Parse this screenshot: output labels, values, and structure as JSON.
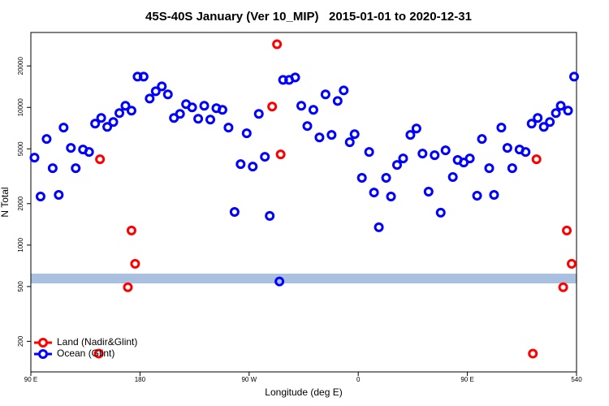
{
  "chart_data": {
    "type": "scatter",
    "title": "45S-40S January (Ver 10_MIP)   2015-01-01 to 2020-12-31",
    "x_label": "Longitude (deg E)",
    "y_label": "N Total",
    "log_y": true,
    "grid": false,
    "legend": "bottom-left",
    "xlim": [
      90,
      540
    ],
    "ylim": [
      120,
      35000
    ],
    "xticks": [
      {
        "value": 90,
        "label": "90 E"
      },
      180,
      {
        "value": 270,
        "label": "90 W"
      },
      {
        "value": 360,
        "label": "0"
      },
      {
        "value": 450,
        "label": "90 E"
      },
      540
    ],
    "yticks": [
      200,
      500,
      1000,
      2000,
      5000,
      10000,
      20000
    ],
    "series": [
      {
        "name": "Land (Nadir&Glint)",
        "color": "#ff0000",
        "x": [
          147,
          173,
          176,
          170,
          146,
          289,
          293,
          296,
          507,
          532,
          536,
          529,
          504
        ],
        "values": [
          4200,
          1276,
          732,
          494,
          163,
          10140,
          28760,
          4560,
          4200,
          1276,
          732,
          494,
          163
        ]
      },
      {
        "name": "Ocean (Glint)",
        "color": "#0000ff",
        "x": [
          93,
          98,
          103,
          108,
          113,
          117,
          123,
          127,
          133,
          138,
          143,
          148,
          153,
          158,
          163,
          168,
          173,
          178,
          183,
          188,
          193,
          198,
          203,
          208,
          213,
          218,
          223,
          228,
          233,
          238,
          243,
          248,
          253,
          258,
          263,
          268,
          273,
          278,
          283,
          287,
          295,
          298,
          303,
          308,
          313,
          318,
          323,
          328,
          333,
          338,
          343,
          348,
          353,
          357,
          363,
          369,
          373,
          377,
          383,
          387,
          392,
          397,
          403,
          408,
          413,
          418,
          423,
          428,
          432,
          438,
          442,
          447,
          452,
          458,
          462,
          468,
          472,
          478,
          483,
          487,
          493,
          498,
          503,
          508,
          513,
          518,
          523,
          527,
          533,
          538
        ],
        "values": [
          4320,
          2255,
          5895,
          3620,
          2315,
          7130,
          5080,
          3620,
          4945,
          4745,
          7625,
          8385,
          7225,
          7835,
          9095,
          10270,
          9475,
          16730,
          16730,
          11600,
          13110,
          14220,
          12420,
          8385,
          8975,
          10560,
          10000,
          8272,
          10270,
          8160,
          9860,
          9600,
          7130,
          1742,
          3875,
          6485,
          3720,
          8975,
          4380,
          1630,
          544,
          15850,
          15850,
          16510,
          10270,
          7325,
          9600,
          6055,
          12420,
          6310,
          11140,
          13290,
          5585,
          6395,
          3080,
          4745,
          2410,
          1347,
          3080,
          2255,
          3820,
          4260,
          6310,
          7030,
          4620,
          2445,
          4500,
          1720,
          4880,
          3120,
          4150,
          3980,
          4260,
          2285,
          5895,
          3620,
          2315,
          7130,
          5080,
          3620,
          4945,
          4745,
          7625,
          8385,
          7225,
          7835,
          9095,
          10270,
          9475,
          16730
        ]
      }
    ]
  }
}
